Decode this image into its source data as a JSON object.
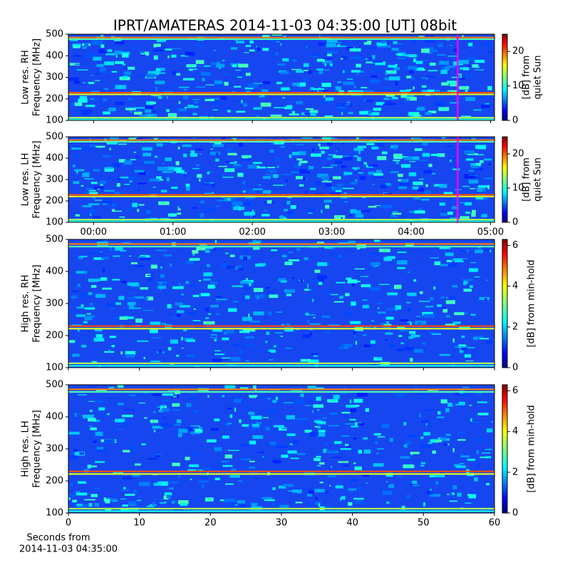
{
  "chart_data": [
    {
      "type": "spectrogram",
      "title": "IPRT/AMATERAS 2014-11-03 04:35:00 [UT]   08bit",
      "ylabel": [
        "Low res. RH",
        "Frequency [MHz]"
      ],
      "ylim": [
        100,
        500
      ],
      "yticks": [
        100,
        200,
        300,
        400,
        500
      ],
      "xlim": [
        "23:41",
        "05:03"
      ],
      "xticks": [
        "00:00",
        "01:00",
        "02:00",
        "03:00",
        "04:00",
        "05:00"
      ],
      "show_xtick_labels": false,
      "marker_time": "04:35",
      "marker_color": "#ff00ff",
      "colorbar": {
        "label": [
          "[dB] from",
          "quiet Sun"
        ],
        "lim": [
          0,
          25
        ],
        "ticks": [
          0,
          10,
          20
        ]
      }
    },
    {
      "type": "spectrogram",
      "ylabel": [
        "Low res. LH",
        "Frequency [MHz]"
      ],
      "ylim": [
        100,
        500
      ],
      "yticks": [
        100,
        200,
        300,
        400,
        500
      ],
      "xlim": [
        "23:41",
        "05:03"
      ],
      "xticks": [
        "00:00",
        "01:00",
        "02:00",
        "03:00",
        "04:00",
        "05:00"
      ],
      "show_xtick_labels": true,
      "marker_time": "04:35",
      "marker_color": "#ff00ff",
      "colorbar": {
        "label": [
          "[dB] from",
          "quiet Sun"
        ],
        "lim": [
          0,
          25
        ],
        "ticks": [
          0,
          10,
          20
        ]
      }
    },
    {
      "type": "spectrogram",
      "ylabel": [
        "High res. RH",
        "Frequency [MHz]"
      ],
      "ylim": [
        100,
        500
      ],
      "yticks": [
        100,
        200,
        300,
        400,
        500
      ],
      "xlim": [
        0,
        60
      ],
      "xticks": [
        0,
        10,
        20,
        30,
        40,
        50,
        60
      ],
      "show_xtick_labels": false,
      "colorbar": {
        "label": [
          "[dB] from min-hold"
        ],
        "lim": [
          0,
          6.3
        ],
        "ticks": [
          0,
          2,
          4,
          6
        ]
      }
    },
    {
      "type": "spectrogram",
      "ylabel": [
        "High res. LH",
        "Frequency [MHz]"
      ],
      "ylim": [
        100,
        500
      ],
      "yticks": [
        100,
        200,
        300,
        400,
        500
      ],
      "xlim": [
        0,
        60
      ],
      "xticks": [
        0,
        10,
        20,
        30,
        40,
        50,
        60
      ],
      "show_xtick_labels": true,
      "xlabel": [
        "Seconds from",
        "2014-11-03 04:35:00"
      ],
      "colorbar": {
        "label": [
          "[dB] from min-hold"
        ],
        "lim": [
          0,
          6.3
        ],
        "ticks": [
          0,
          2,
          4,
          6
        ]
      }
    }
  ]
}
